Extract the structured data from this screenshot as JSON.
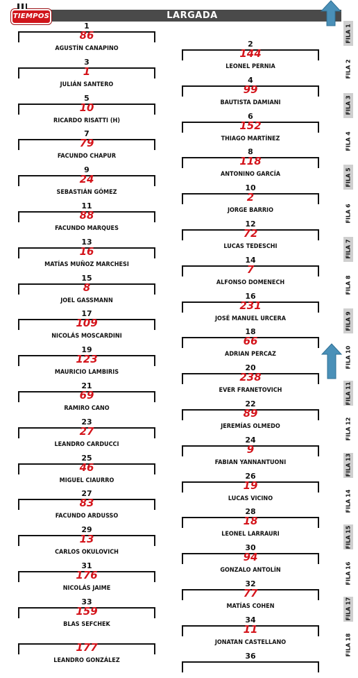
{
  "header": {
    "title": "LARGADA",
    "logo_text": "TIEMPOS"
  },
  "grid": [
    {
      "pos": "1",
      "number": "86",
      "driver": "AGUSTÍN CANAPINO"
    },
    {
      "pos": "2",
      "number": "144",
      "driver": "LEONEL PERNIA"
    },
    {
      "pos": "3",
      "number": "1",
      "driver": "JULIÁN SANTERO"
    },
    {
      "pos": "4",
      "number": "99",
      "driver": "BAUTISTA DAMIANI"
    },
    {
      "pos": "5",
      "number": "10",
      "driver": "RICARDO RISATTI (H)"
    },
    {
      "pos": "6",
      "number": "152",
      "driver": "THIAGO MARTÍNEZ"
    },
    {
      "pos": "7",
      "number": "79",
      "driver": "FACUNDO CHAPUR"
    },
    {
      "pos": "8",
      "number": "118",
      "driver": "ANTONINO GARCÍA"
    },
    {
      "pos": "9",
      "number": "24",
      "driver": "SEBASTIÁN GÓMEZ"
    },
    {
      "pos": "10",
      "number": "2",
      "driver": "JORGE BARRIO"
    },
    {
      "pos": "11",
      "number": "88",
      "driver": "FACUNDO MARQUES"
    },
    {
      "pos": "12",
      "number": "72",
      "driver": "LUCAS TEDESCHI"
    },
    {
      "pos": "13",
      "number": "16",
      "driver": "MATÍAS MUÑOZ MARCHESI"
    },
    {
      "pos": "14",
      "number": "7",
      "driver": "ALFONSO DOMENECH"
    },
    {
      "pos": "15",
      "number": "8",
      "driver": "JOEL GASSMANN"
    },
    {
      "pos": "16",
      "number": "231",
      "driver": "JOSÉ MANUEL URCERA"
    },
    {
      "pos": "17",
      "number": "109",
      "driver": "NICOLÁS MOSCARDINI"
    },
    {
      "pos": "18",
      "number": "66",
      "driver": "ADRIAN PERCAZ"
    },
    {
      "pos": "19",
      "number": "123",
      "driver": "MAURICIO LAMBIRIS"
    },
    {
      "pos": "20",
      "number": "238",
      "driver": "EVER FRANETOVICH"
    },
    {
      "pos": "21",
      "number": "69",
      "driver": "RAMIRO CANO"
    },
    {
      "pos": "22",
      "number": "89",
      "driver": "JEREMÍAS OLMEDO"
    },
    {
      "pos": "23",
      "number": "27",
      "driver": "LEANDRO CARDUCCI"
    },
    {
      "pos": "24",
      "number": "9",
      "driver": "FABIAN YANNANTUONI"
    },
    {
      "pos": "25",
      "number": "46",
      "driver": "MIGUEL CIAURRO"
    },
    {
      "pos": "26",
      "number": "19",
      "driver": "LUCAS VICINO"
    },
    {
      "pos": "27",
      "number": "83",
      "driver": "FACUNDO ARDUSSO"
    },
    {
      "pos": "28",
      "number": "18",
      "driver": "LEONEL LARRAURI"
    },
    {
      "pos": "29",
      "number": "13",
      "driver": "CARLOS OKULOVICH"
    },
    {
      "pos": "30",
      "number": "94",
      "driver": "GONZALO ANTOLÍN"
    },
    {
      "pos": "31",
      "number": "176",
      "driver": "NICOLÁS JAIME"
    },
    {
      "pos": "32",
      "number": "77",
      "driver": "MATÍAS COHEN"
    },
    {
      "pos": "33",
      "number": "159",
      "driver": "BLAS SEFCHEK"
    },
    {
      "pos": "34",
      "number": "11",
      "driver": "JONATAN CASTELLANO"
    },
    {
      "pos": "",
      "number": "177",
      "driver": "LEANDRO GONZÁLEZ"
    },
    {
      "pos": "36",
      "number": "",
      "driver": ""
    }
  ],
  "rows": [
    "FILA 1",
    "FILA 2",
    "FILA 3",
    "FILA 4",
    "FILA 5",
    "FILA 6",
    "FILA 7",
    "FILA 8",
    "FILA 9",
    "FILA 10",
    "FILA 11",
    "FILA 12",
    "FILA 13",
    "FILA 14",
    "FILA 15",
    "FILA 16",
    "FILA 17",
    "FILA 18"
  ],
  "colors": {
    "header": "#4a4a4a",
    "number": "#d4141b",
    "arrow": "#4a90b8",
    "shade": "#cfcfcf"
  },
  "icons": [
    "tiempos-logo",
    "up-arrow-icon"
  ]
}
